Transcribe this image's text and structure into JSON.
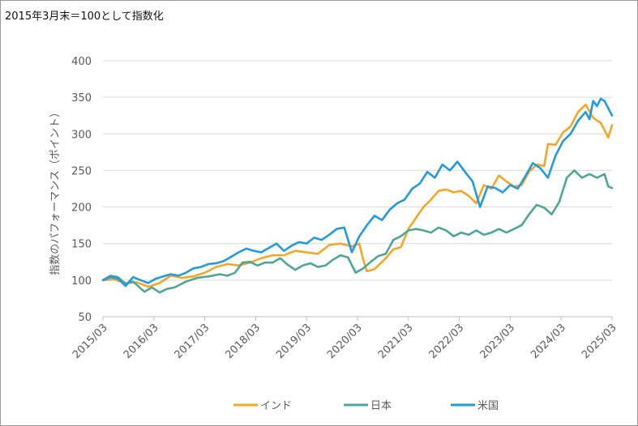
{
  "note": "2015年3月末＝100として指数化",
  "chart_data": {
    "type": "line",
    "title": "",
    "ylabel": "指数のパフォーマンス（ポイント）",
    "xlabel": "",
    "ylim": [
      50,
      400
    ],
    "yticks": [
      50,
      100,
      150,
      200,
      250,
      300,
      350,
      400
    ],
    "x_tick_labels": [
      "2015/03",
      "2016/03",
      "2017/03",
      "2018/03",
      "2019/03",
      "2020/03",
      "2021/03",
      "2022/03",
      "2023/03",
      "2024/03",
      "2025/03"
    ],
    "x_range_months": [
      0,
      120
    ],
    "grid": "horizontal",
    "legend": "bottom",
    "series": [
      {
        "name": "インド",
        "color": "#F5A623",
        "points": [
          [
            0,
            100
          ],
          [
            3,
            101
          ],
          [
            6,
            96
          ],
          [
            9,
            97
          ],
          [
            12,
            91
          ],
          [
            15,
            96
          ],
          [
            18,
            106
          ],
          [
            21,
            103
          ],
          [
            24,
            105
          ],
          [
            27,
            110
          ],
          [
            30,
            118
          ],
          [
            33,
            122
          ],
          [
            36,
            120
          ],
          [
            39,
            124
          ],
          [
            42,
            130
          ],
          [
            45,
            134
          ],
          [
            48,
            134
          ],
          [
            51,
            140
          ],
          [
            54,
            138
          ],
          [
            57,
            136
          ],
          [
            60,
            148
          ],
          [
            63,
            150
          ],
          [
            66,
            146
          ],
          [
            68,
            150
          ],
          [
            69,
            128
          ],
          [
            70,
            112
          ],
          [
            72,
            115
          ],
          [
            75,
            130
          ],
          [
            77,
            142
          ],
          [
            79,
            145
          ],
          [
            81,
            170
          ],
          [
            83,
            185
          ],
          [
            85,
            200
          ],
          [
            87,
            210
          ],
          [
            89,
            222
          ],
          [
            91,
            224
          ],
          [
            93,
            220
          ],
          [
            95,
            222
          ],
          [
            97,
            215
          ],
          [
            99,
            205
          ],
          [
            101,
            230
          ],
          [
            103,
            225
          ],
          [
            105,
            243
          ],
          [
            107,
            235
          ],
          [
            109,
            228
          ],
          [
            111,
            230
          ],
          [
            113,
            248
          ],
          [
            115,
            258
          ],
          [
            117,
            256
          ],
          [
            118,
            286
          ],
          [
            120,
            285
          ],
          [
            122,
            302
          ],
          [
            124,
            310
          ],
          [
            126,
            330
          ],
          [
            128,
            340
          ],
          [
            130,
            322
          ],
          [
            132,
            315
          ],
          [
            134,
            295
          ],
          [
            135,
            312
          ]
        ]
      },
      {
        "name": "日本",
        "color": "#4DA697",
        "points": [
          [
            0,
            100
          ],
          [
            2,
            106
          ],
          [
            4,
            104
          ],
          [
            6,
            95
          ],
          [
            8,
            98
          ],
          [
            11,
            84
          ],
          [
            13,
            90
          ],
          [
            15,
            83
          ],
          [
            17,
            88
          ],
          [
            19,
            90
          ],
          [
            22,
            98
          ],
          [
            25,
            103
          ],
          [
            28,
            105
          ],
          [
            31,
            108
          ],
          [
            33,
            106
          ],
          [
            35,
            110
          ],
          [
            37,
            124
          ],
          [
            39,
            125
          ],
          [
            41,
            120
          ],
          [
            43,
            124
          ],
          [
            45,
            124
          ],
          [
            47,
            130
          ],
          [
            49,
            121
          ],
          [
            51,
            114
          ],
          [
            53,
            120
          ],
          [
            55,
            123
          ],
          [
            57,
            118
          ],
          [
            59,
            120
          ],
          [
            61,
            128
          ],
          [
            63,
            134
          ],
          [
            65,
            131
          ],
          [
            67,
            110
          ],
          [
            69,
            116
          ],
          [
            71,
            125
          ],
          [
            73,
            133
          ],
          [
            75,
            136
          ],
          [
            77,
            155
          ],
          [
            79,
            160
          ],
          [
            81,
            168
          ],
          [
            83,
            170
          ],
          [
            85,
            168
          ],
          [
            87,
            165
          ],
          [
            89,
            172
          ],
          [
            91,
            168
          ],
          [
            93,
            160
          ],
          [
            95,
            165
          ],
          [
            97,
            162
          ],
          [
            99,
            168
          ],
          [
            101,
            162
          ],
          [
            103,
            165
          ],
          [
            105,
            170
          ],
          [
            107,
            165
          ],
          [
            109,
            170
          ],
          [
            111,
            175
          ],
          [
            113,
            190
          ],
          [
            115,
            203
          ],
          [
            117,
            199
          ],
          [
            119,
            190
          ],
          [
            121,
            207
          ],
          [
            123,
            240
          ],
          [
            125,
            250
          ],
          [
            127,
            240
          ],
          [
            129,
            245
          ],
          [
            131,
            240
          ],
          [
            133,
            245
          ],
          [
            134,
            228
          ],
          [
            135,
            226
          ]
        ]
      },
      {
        "name": "米国",
        "color": "#1F9BDE",
        "points": [
          [
            0,
            100
          ],
          [
            2,
            104
          ],
          [
            4,
            102
          ],
          [
            6,
            92
          ],
          [
            8,
            104
          ],
          [
            10,
            100
          ],
          [
            12,
            96
          ],
          [
            14,
            102
          ],
          [
            16,
            105
          ],
          [
            18,
            108
          ],
          [
            20,
            106
          ],
          [
            22,
            110
          ],
          [
            24,
            116
          ],
          [
            26,
            118
          ],
          [
            28,
            122
          ],
          [
            30,
            123
          ],
          [
            32,
            126
          ],
          [
            34,
            132
          ],
          [
            36,
            138
          ],
          [
            38,
            143
          ],
          [
            40,
            140
          ],
          [
            42,
            138
          ],
          [
            44,
            144
          ],
          [
            46,
            150
          ],
          [
            48,
            140
          ],
          [
            50,
            147
          ],
          [
            52,
            152
          ],
          [
            54,
            150
          ],
          [
            56,
            158
          ],
          [
            58,
            155
          ],
          [
            60,
            162
          ],
          [
            62,
            170
          ],
          [
            64,
            172
          ],
          [
            66,
            138
          ],
          [
            68,
            160
          ],
          [
            70,
            175
          ],
          [
            72,
            188
          ],
          [
            74,
            182
          ],
          [
            76,
            196
          ],
          [
            78,
            205
          ],
          [
            80,
            210
          ],
          [
            82,
            225
          ],
          [
            84,
            232
          ],
          [
            86,
            248
          ],
          [
            88,
            240
          ],
          [
            90,
            258
          ],
          [
            92,
            250
          ],
          [
            94,
            262
          ],
          [
            96,
            248
          ],
          [
            98,
            235
          ],
          [
            100,
            200
          ],
          [
            102,
            228
          ],
          [
            104,
            226
          ],
          [
            106,
            220
          ],
          [
            108,
            230
          ],
          [
            110,
            225
          ],
          [
            112,
            242
          ],
          [
            114,
            260
          ],
          [
            116,
            253
          ],
          [
            118,
            240
          ],
          [
            120,
            270
          ],
          [
            122,
            290
          ],
          [
            124,
            300
          ],
          [
            126,
            318
          ],
          [
            128,
            330
          ],
          [
            129,
            320
          ],
          [
            130,
            345
          ],
          [
            131,
            338
          ],
          [
            132,
            348
          ],
          [
            133,
            345
          ],
          [
            135,
            325
          ]
        ]
      }
    ]
  }
}
